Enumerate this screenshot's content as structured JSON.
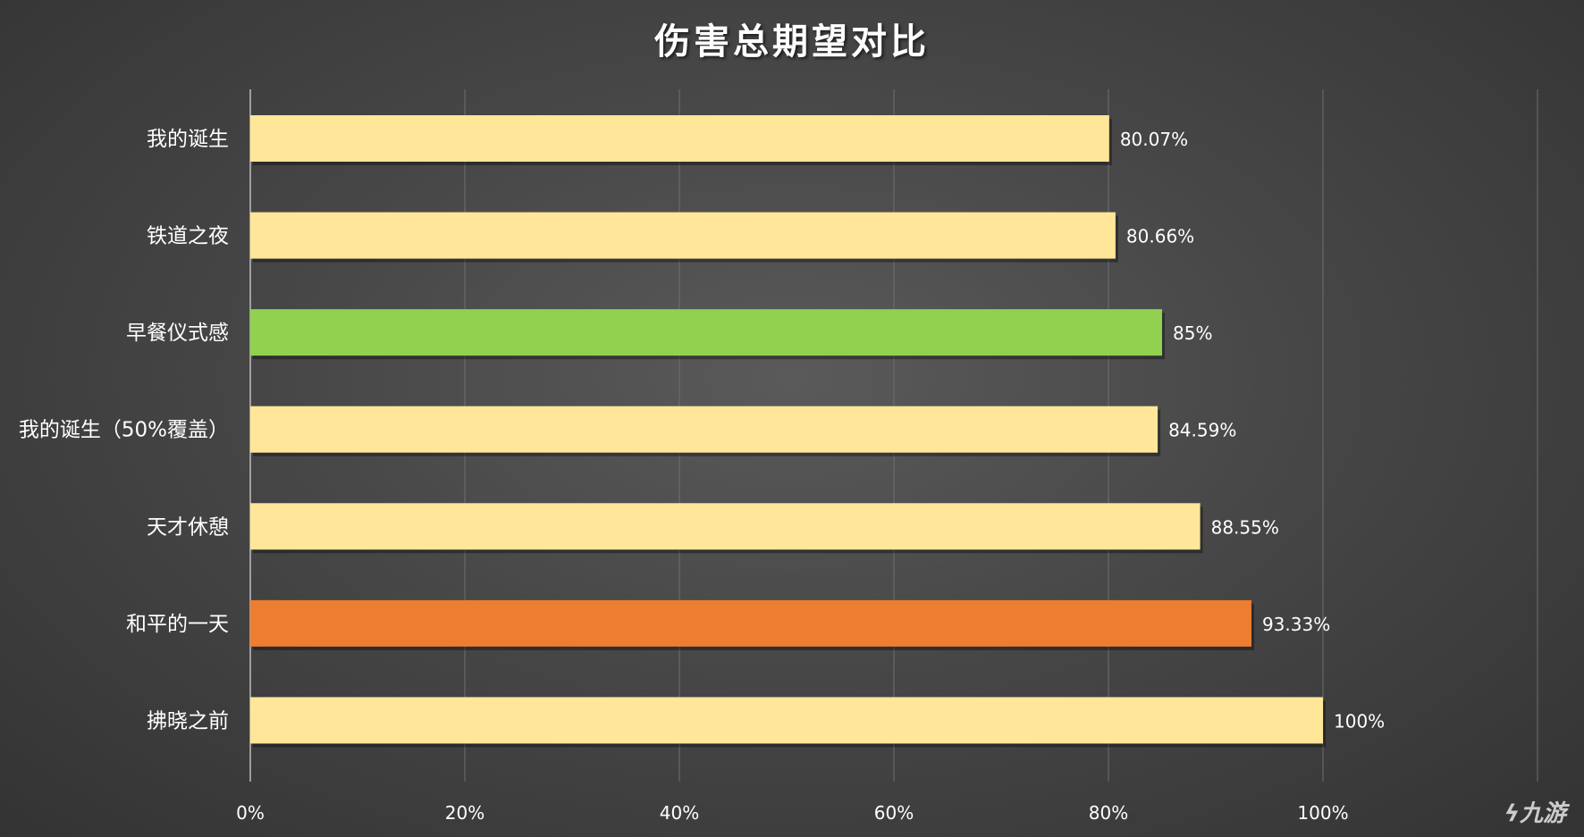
{
  "chart_data": {
    "type": "bar",
    "orientation": "horizontal",
    "title": "伤害总期望对比",
    "categories": [
      "我的诞生",
      "铁道之夜",
      "早餐仪式感",
      "我的诞生（50%覆盖）",
      "天才休憩",
      "和平的一天",
      "拂晓之前"
    ],
    "values": [
      80.07,
      80.66,
      85,
      84.59,
      88.55,
      93.33,
      100
    ],
    "value_labels": [
      "80.07%",
      "80.66%",
      "85%",
      "84.59%",
      "88.55%",
      "93.33%",
      "100%"
    ],
    "bar_colors": [
      "#FFE699",
      "#FFE699",
      "#92D050",
      "#FFE699",
      "#FFE699",
      "#ED7D31",
      "#FFE699"
    ],
    "xlim": [
      0,
      120
    ],
    "x_ticks": [
      0,
      20,
      40,
      60,
      80,
      100
    ],
    "x_tick_labels": [
      "0%",
      "20%",
      "40%",
      "60%",
      "80%",
      "100%"
    ],
    "grid": true,
    "xlabel": "",
    "ylabel": ""
  },
  "watermark": {
    "text": "九游",
    "logo_icon": "nine-game-logo-icon"
  },
  "colors": {
    "background": "#474747",
    "gridline": "#6e6e6e",
    "text": "#ffffff"
  }
}
